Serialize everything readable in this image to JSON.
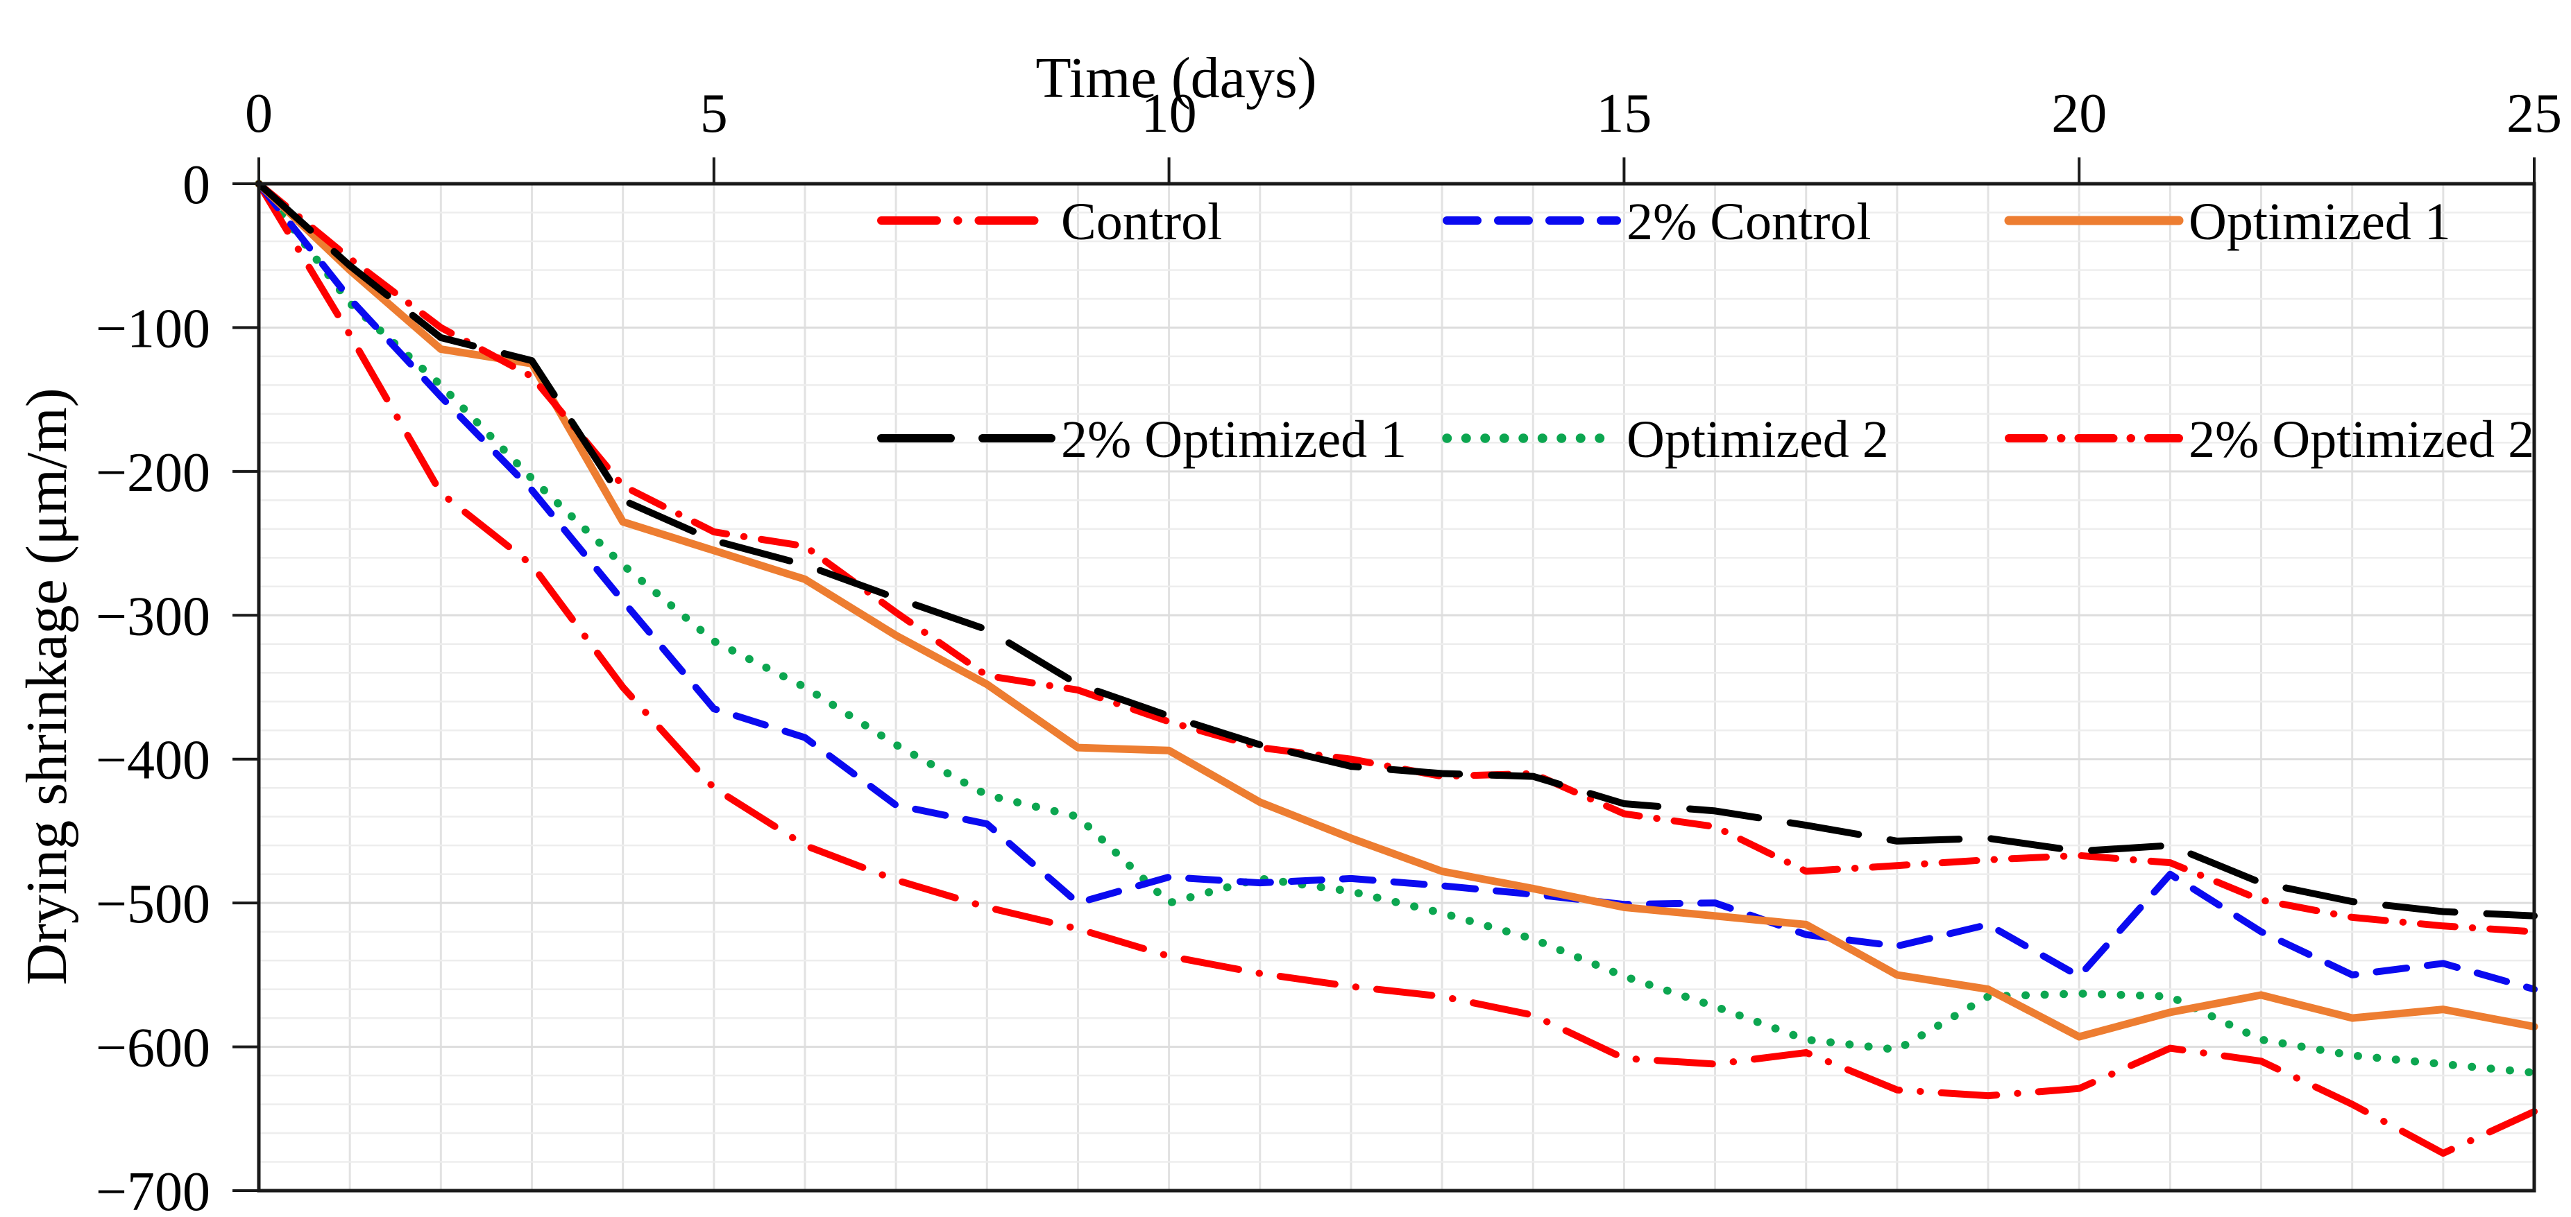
{
  "chart_data": {
    "type": "line",
    "title": "",
    "xlabel": "Time (days)",
    "ylabel": "Drying shrinkage (μm/m)",
    "xlim": [
      0,
      25
    ],
    "ylim": [
      0,
      -700
    ],
    "x_ticks": [
      0,
      5,
      10,
      15,
      20,
      25
    ],
    "y_ticks": [
      0,
      -100,
      -200,
      -300,
      -400,
      -500,
      -600,
      -700
    ],
    "y_minor_step": 20,
    "x_minor_step": 1,
    "grid": true,
    "legend_position": "inside-top-two-rows",
    "x": [
      0,
      1,
      2,
      3,
      4,
      5,
      6,
      7,
      8,
      9,
      10,
      11,
      12,
      13,
      14,
      15,
      16,
      17,
      18,
      19,
      20,
      21,
      22,
      23,
      24,
      25
    ],
    "series": [
      {
        "name": "Control",
        "color": "#fe0000",
        "style": "dash-dot",
        "legend_row": 0,
        "legend_col": 0,
        "values": [
          0,
          -105,
          -215,
          -265,
          -350,
          -420,
          -460,
          -484,
          -503,
          -518,
          -537,
          -549,
          -558,
          -565,
          -578,
          -608,
          -612,
          -604,
          -630,
          -634,
          -629,
          -601,
          -610,
          -640,
          -674,
          -645
        ]
      },
      {
        "name": "2% Control",
        "color": "#0a0af0",
        "style": "dash",
        "legend_row": 0,
        "legend_col": 1,
        "values": [
          0,
          -80,
          -148,
          -213,
          -290,
          -365,
          -385,
          -432,
          -445,
          -500,
          -482,
          -486,
          -483,
          -488,
          -494,
          -501,
          -500,
          -522,
          -530,
          -515,
          -551,
          -480,
          -520,
          -550,
          -542,
          -560
        ]
      },
      {
        "name": "Optimized 1",
        "color": "#ed7d31",
        "style": "solid",
        "legend_row": 0,
        "legend_col": 2,
        "values": [
          0,
          -60,
          -115,
          -125,
          -235,
          -255,
          -275,
          -314,
          -348,
          -392,
          -394,
          -430,
          -455,
          -478,
          -490,
          -503,
          -509,
          -515,
          -550,
          -560,
          -593,
          -576,
          -564,
          -580,
          -574,
          -586
        ]
      },
      {
        "name": "2% Optimized 1",
        "color": "#000000",
        "style": "long-dash",
        "legend_row": 1,
        "legend_col": 0,
        "values": [
          0,
          -57,
          -107,
          -123,
          -220,
          -248,
          -265,
          -288,
          -310,
          -348,
          -370,
          -390,
          -405,
          -410,
          -412,
          -431,
          -436,
          -446,
          -457,
          -455,
          -464,
          -460,
          -486,
          -499,
          -506,
          -509
        ]
      },
      {
        "name": "Optimized 2",
        "color": "#0ca650",
        "style": "dot",
        "legend_row": 1,
        "legend_col": 1,
        "values": [
          0,
          -83,
          -140,
          -205,
          -265,
          -318,
          -350,
          -390,
          -425,
          -440,
          -500,
          -483,
          -492,
          -507,
          -525,
          -551,
          -572,
          -595,
          -602,
          -565,
          -563,
          -565,
          -595,
          -606,
          -612,
          -618
        ]
      },
      {
        "name": "2% Optimized 2",
        "color": "#fe0000",
        "style": "dash-dot-small",
        "legend_row": 1,
        "legend_col": 2,
        "values": [
          0,
          -52,
          -100,
          -134,
          -210,
          -242,
          -252,
          -298,
          -342,
          -352,
          -374,
          -392,
          -400,
          -412,
          -410,
          -438,
          -447,
          -478,
          -474,
          -470,
          -467,
          -472,
          -498,
          -510,
          -516,
          -520
        ]
      }
    ]
  },
  "colors": {
    "background": "#ffffff",
    "axis": "#1a1a1a",
    "grid_minor": "#ededed",
    "grid_major": "#dddddd",
    "grid_vertical": "#e2e2e2"
  }
}
